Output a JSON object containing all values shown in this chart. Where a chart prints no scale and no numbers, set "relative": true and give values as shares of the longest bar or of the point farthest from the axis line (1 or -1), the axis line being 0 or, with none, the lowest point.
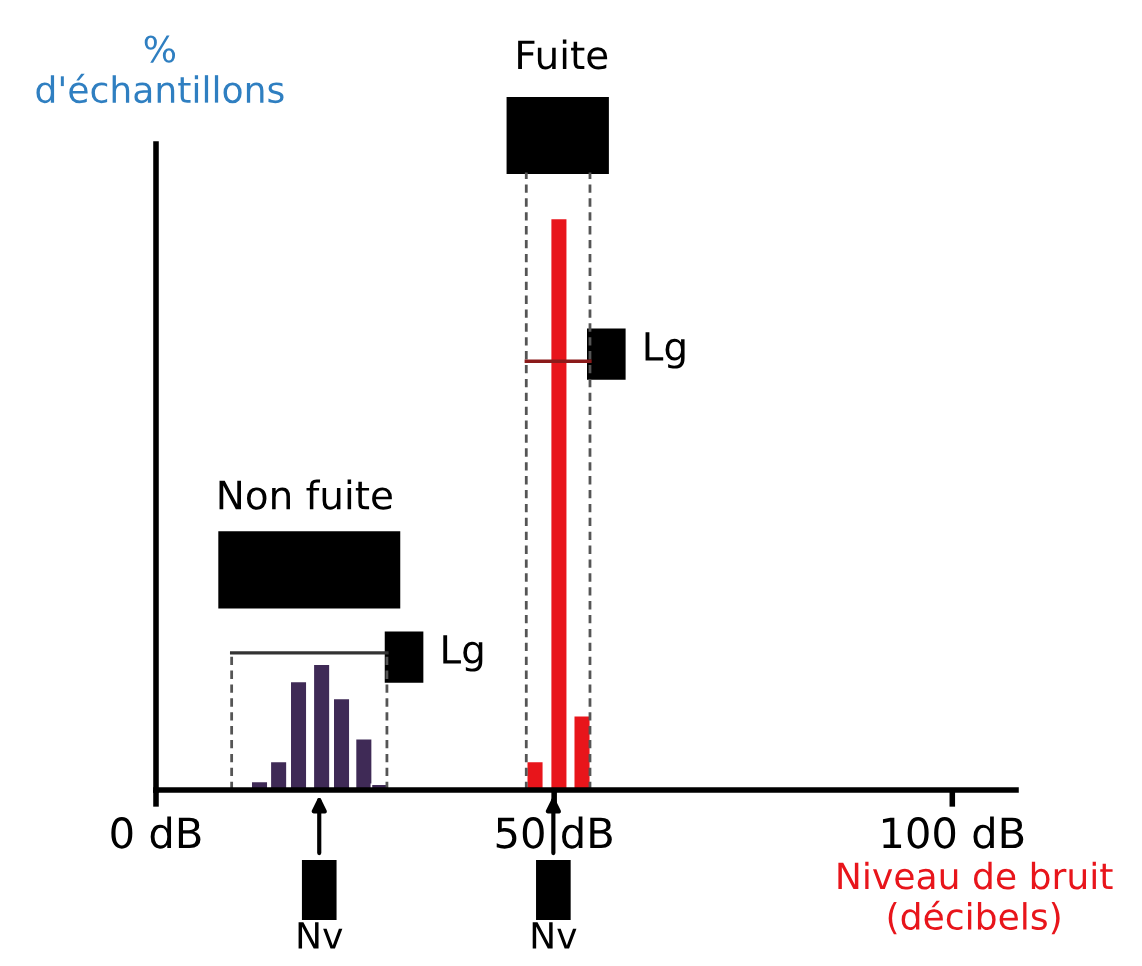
{
  "chart_data": {
    "type": "bar",
    "relative": true,
    "xlabel": "Niveau de bruit (décibels)",
    "ylabel": "% d'échantillons",
    "xlim": [
      0,
      108
    ],
    "xticks": [
      {
        "value": 0,
        "label": "0 dB"
      },
      {
        "value": 50,
        "label": "50 dB"
      },
      {
        "value": 100,
        "label": "100 dB"
      }
    ],
    "grid": false,
    "series": [
      {
        "color": "#3f2a56",
        "x": [
          10.5,
          13,
          15.4,
          17.9,
          20.8,
          23.3,
          26.1,
          28.1
        ],
        "values": [
          0.005,
          0.015,
          0.05,
          0.19,
          0.22,
          0.16,
          0.09,
          0.01
        ]
      },
      {
        "color": "#e8151b",
        "x": [
          47.6,
          50.6,
          53.5
        ],
        "values": [
          0.05,
          1,
          0.13
        ]
      }
    ],
    "ref_lines": [
      {
        "axis": "x",
        "value": 9.5,
        "line_style": "dashed",
        "color": "#555555"
      },
      {
        "axis": "x",
        "value": 29,
        "line_style": "dashed",
        "color": "#555555"
      },
      {
        "axis": "x",
        "value": 46.5,
        "line_style": "dashed",
        "color": "#555555"
      },
      {
        "axis": "x",
        "value": 54.5,
        "line_style": "dashed",
        "color": "#555555"
      }
    ],
    "annotations": [
      "Non fuite",
      "Fuite",
      "Lg",
      "Lg",
      "Nv",
      "Nv"
    ]
  }
}
